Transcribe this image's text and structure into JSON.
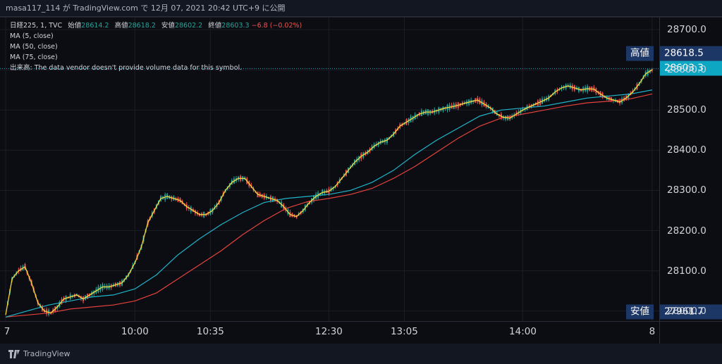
{
  "header": {
    "caption": "masa117_114 が TradingView.com で 12月 07, 2021 20:42 UTC+9 に公開"
  },
  "legend": {
    "symbol": "日経225, 1, TVC",
    "open_label": "始値",
    "open": "28614.2",
    "high_label": "高値",
    "high": "28618.2",
    "low_label": "安値",
    "low": "28602.2",
    "close_label": "終値",
    "close": "28603.3",
    "change": "−6.8 (−0.02%)",
    "ma1": "MA (5, close)",
    "ma2": "MA (50, close)",
    "ma3": "MA (75, close)",
    "volume_note": "出来高: The data vendor doesn't provide volume data for this symbol."
  },
  "badges": {
    "high_label": "高値",
    "high_value": "28618.5",
    "last_value": "28603.3",
    "low_label": "安値",
    "low_value": "27961.7"
  },
  "footer": {
    "brand": "TradingView"
  },
  "colors": {
    "up": "#26a69a",
    "down": "#ef5350",
    "ma5": "#f5d73a",
    "ma50": "#1fb5c9",
    "ma75": "#e5423c",
    "badge_high_low": "#1c3766",
    "badge_last": "#0da7c4"
  },
  "chart_data": {
    "type": "line",
    "title": "日経225, 1, TVC",
    "y_ticks": [
      28000,
      28100,
      28200,
      28300,
      28400,
      28500,
      28600,
      28700
    ],
    "y_tick_labels": [
      "28000.0",
      "28100.0",
      "28200.0",
      "28300.0",
      "28400.0",
      "28500.0",
      "28600.0",
      "28700.0"
    ],
    "ylim": [
      27975,
      28730
    ],
    "x_ticks": [
      {
        "label": "7",
        "t": 0
      },
      {
        "label": "10:00",
        "t": 60
      },
      {
        "label": "10:35",
        "t": 95
      },
      {
        "label": "12:30",
        "t": 150
      },
      {
        "label": "13:05",
        "t": 185
      },
      {
        "label": "14:00",
        "t": 240
      },
      {
        "label": "8",
        "t": 300
      }
    ],
    "xlim": [
      0,
      302
    ],
    "high_line": 28603.3,
    "series": [
      {
        "name": "MA (5, close)",
        "color": "#f5d73a",
        "points": [
          [
            0,
            27990
          ],
          [
            3,
            28080
          ],
          [
            6,
            28100
          ],
          [
            9,
            28110
          ],
          [
            12,
            28070
          ],
          [
            15,
            28020
          ],
          [
            18,
            28000
          ],
          [
            21,
            27995
          ],
          [
            24,
            28010
          ],
          [
            27,
            28030
          ],
          [
            30,
            28035
          ],
          [
            33,
            28040
          ],
          [
            36,
            28030
          ],
          [
            39,
            28040
          ],
          [
            42,
            28050
          ],
          [
            45,
            28060
          ],
          [
            48,
            28060
          ],
          [
            51,
            28065
          ],
          [
            54,
            28070
          ],
          [
            57,
            28090
          ],
          [
            60,
            28120
          ],
          [
            63,
            28160
          ],
          [
            66,
            28220
          ],
          [
            69,
            28250
          ],
          [
            72,
            28280
          ],
          [
            75,
            28285
          ],
          [
            78,
            28280
          ],
          [
            81,
            28275
          ],
          [
            84,
            28260
          ],
          [
            87,
            28250
          ],
          [
            90,
            28240
          ],
          [
            93,
            28240
          ],
          [
            96,
            28250
          ],
          [
            99,
            28270
          ],
          [
            102,
            28300
          ],
          [
            105,
            28320
          ],
          [
            108,
            28330
          ],
          [
            111,
            28330
          ],
          [
            114,
            28310
          ],
          [
            117,
            28290
          ],
          [
            120,
            28285
          ],
          [
            123,
            28280
          ],
          [
            126,
            28275
          ],
          [
            129,
            28260
          ],
          [
            132,
            28240
          ],
          [
            135,
            28235
          ],
          [
            138,
            28250
          ],
          [
            141,
            28270
          ],
          [
            144,
            28285
          ],
          [
            147,
            28295
          ],
          [
            150,
            28298
          ],
          [
            153,
            28310
          ],
          [
            156,
            28330
          ],
          [
            159,
            28350
          ],
          [
            162,
            28370
          ],
          [
            165,
            28385
          ],
          [
            168,
            28395
          ],
          [
            171,
            28410
          ],
          [
            174,
            28420
          ],
          [
            177,
            28425
          ],
          [
            180,
            28440
          ],
          [
            183,
            28460
          ],
          [
            186,
            28470
          ],
          [
            189,
            28480
          ],
          [
            192,
            28490
          ],
          [
            195,
            28495
          ],
          [
            198,
            28495
          ],
          [
            201,
            28500
          ],
          [
            204,
            28505
          ],
          [
            207,
            28508
          ],
          [
            210,
            28512
          ],
          [
            213,
            28517
          ],
          [
            216,
            28521
          ],
          [
            219,
            28525
          ],
          [
            222,
            28515
          ],
          [
            225,
            28505
          ],
          [
            228,
            28490
          ],
          [
            231,
            28482
          ],
          [
            234,
            28480
          ],
          [
            237,
            28490
          ],
          [
            240,
            28500
          ],
          [
            243,
            28508
          ],
          [
            246,
            28515
          ],
          [
            249,
            28522
          ],
          [
            252,
            28530
          ],
          [
            255,
            28545
          ],
          [
            258,
            28555
          ],
          [
            261,
            28560
          ],
          [
            264,
            28555
          ],
          [
            267,
            28550
          ],
          [
            270,
            28553
          ],
          [
            273,
            28552
          ],
          [
            276,
            28540
          ],
          [
            279,
            28530
          ],
          [
            282,
            28525
          ],
          [
            285,
            28520
          ],
          [
            288,
            28530
          ],
          [
            291,
            28545
          ],
          [
            294,
            28565
          ],
          [
            297,
            28590
          ],
          [
            300,
            28600
          ]
        ]
      },
      {
        "name": "MA (50, close)",
        "color": "#1fb5c9",
        "points": [
          [
            0,
            27985
          ],
          [
            10,
            28000
          ],
          [
            20,
            28015
          ],
          [
            30,
            28025
          ],
          [
            40,
            28035
          ],
          [
            50,
            28040
          ],
          [
            60,
            28055
          ],
          [
            70,
            28090
          ],
          [
            80,
            28140
          ],
          [
            90,
            28180
          ],
          [
            100,
            28215
          ],
          [
            110,
            28245
          ],
          [
            120,
            28270
          ],
          [
            130,
            28280
          ],
          [
            140,
            28285
          ],
          [
            150,
            28290
          ],
          [
            160,
            28300
          ],
          [
            170,
            28320
          ],
          [
            180,
            28350
          ],
          [
            190,
            28390
          ],
          [
            200,
            28425
          ],
          [
            210,
            28455
          ],
          [
            220,
            28485
          ],
          [
            230,
            28500
          ],
          [
            240,
            28505
          ],
          [
            250,
            28510
          ],
          [
            260,
            28520
          ],
          [
            270,
            28530
          ],
          [
            280,
            28535
          ],
          [
            290,
            28540
          ],
          [
            300,
            28550
          ]
        ]
      },
      {
        "name": "MA (75, close)",
        "color": "#e5423c",
        "points": [
          [
            0,
            27985
          ],
          [
            10,
            27990
          ],
          [
            20,
            27995
          ],
          [
            30,
            28005
          ],
          [
            40,
            28010
          ],
          [
            50,
            28015
          ],
          [
            60,
            28025
          ],
          [
            70,
            28045
          ],
          [
            80,
            28080
          ],
          [
            90,
            28115
          ],
          [
            100,
            28150
          ],
          [
            110,
            28190
          ],
          [
            120,
            28225
          ],
          [
            130,
            28255
          ],
          [
            140,
            28272
          ],
          [
            150,
            28280
          ],
          [
            160,
            28290
          ],
          [
            170,
            28305
          ],
          [
            180,
            28330
          ],
          [
            190,
            28360
          ],
          [
            200,
            28395
          ],
          [
            210,
            28430
          ],
          [
            220,
            28460
          ],
          [
            230,
            28480
          ],
          [
            240,
            28490
          ],
          [
            250,
            28500
          ],
          [
            260,
            28510
          ],
          [
            270,
            28518
          ],
          [
            280,
            28522
          ],
          [
            290,
            28528
          ],
          [
            300,
            28540
          ]
        ]
      }
    ]
  }
}
